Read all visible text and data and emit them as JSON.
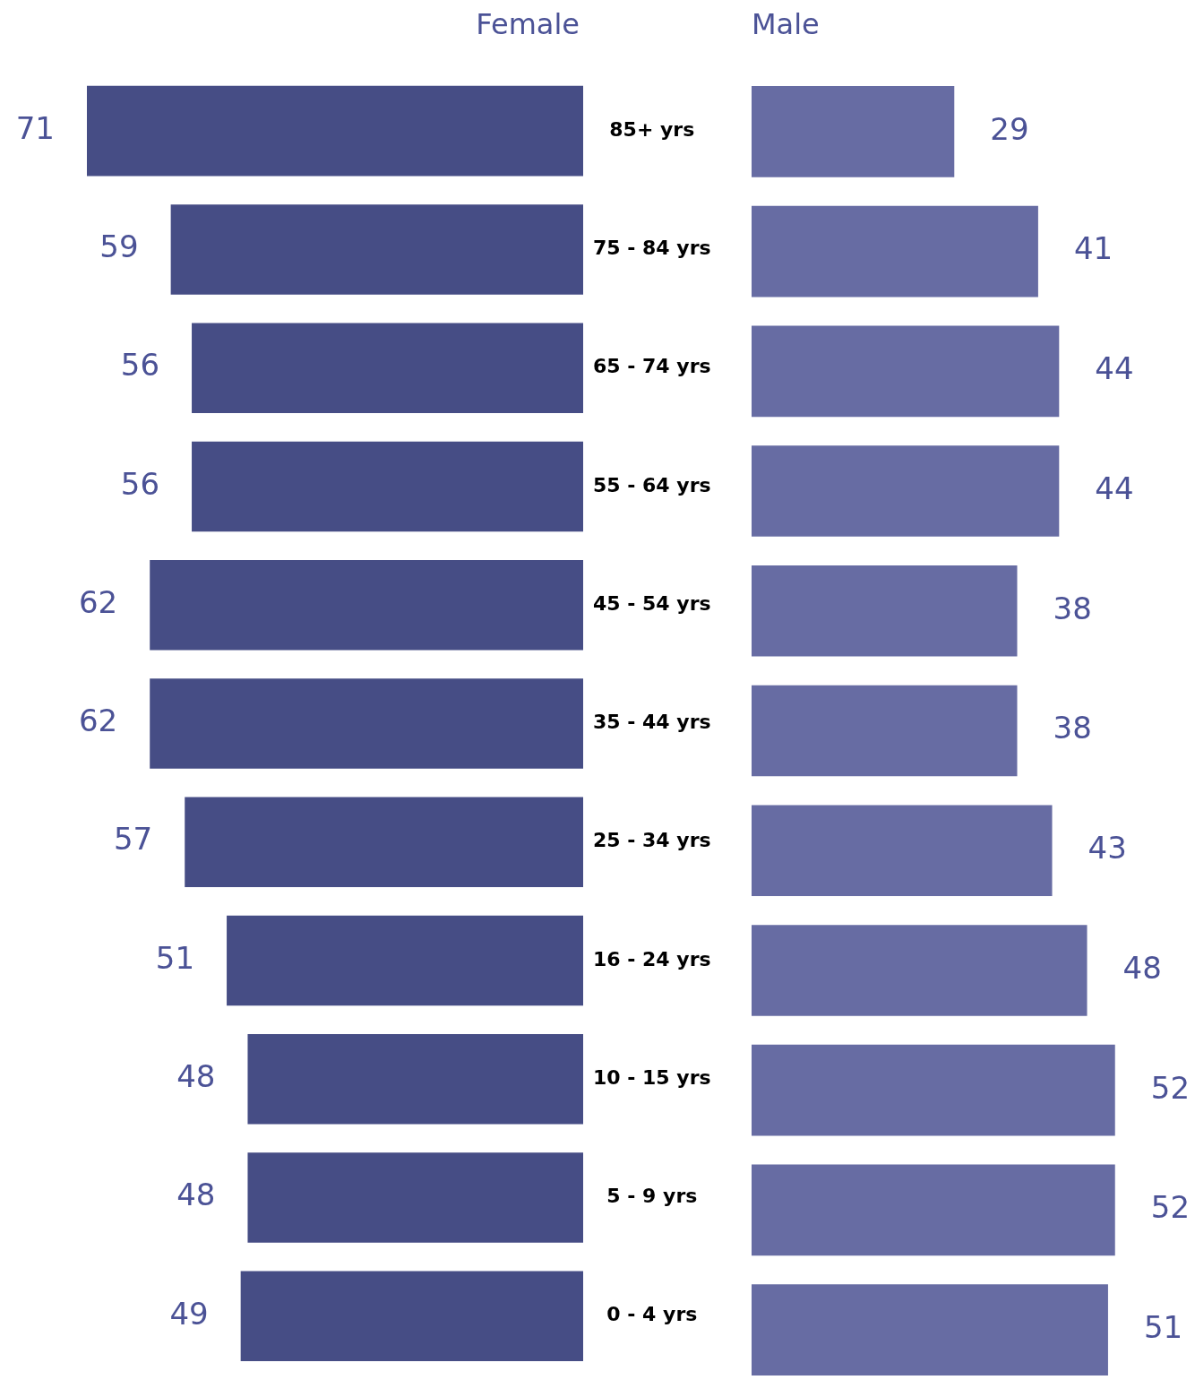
{
  "chart_data": [
    {
      "type": "bar",
      "orientation": "horizontal",
      "title": "Female",
      "categories": [
        "85+ yrs",
        "75 - 84 yrs",
        "65 - 74 yrs",
        "55 - 64 yrs",
        "45 - 54 yrs",
        "35 - 44 yrs",
        "25 - 34 yrs",
        "16 - 24 yrs",
        "10 - 15 yrs",
        "5 - 9 yrs",
        "0 - 4 yrs"
      ],
      "values": [
        71,
        59,
        56,
        56,
        62,
        62,
        57,
        51,
        48,
        48,
        49
      ],
      "color": "#464d85",
      "data_labels": true,
      "tick_labels": "y"
    },
    {
      "type": "bar",
      "orientation": "horizontal",
      "title": "Male",
      "categories": [
        null,
        null,
        null,
        null,
        null,
        null,
        null,
        null,
        null,
        null,
        null
      ],
      "values": [
        29,
        41,
        44,
        44,
        38,
        38,
        43,
        48,
        52,
        52,
        51
      ],
      "color": "#676ca3",
      "data_labels": true
    }
  ]
}
